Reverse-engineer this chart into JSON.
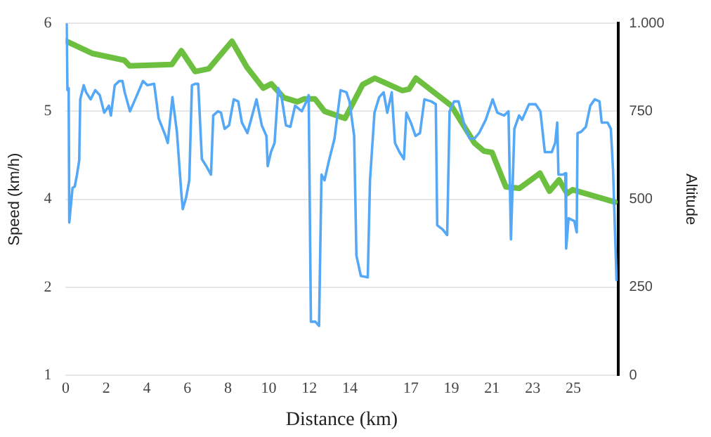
{
  "chart_data": {
    "type": "line",
    "xlabel": "Distance (km)",
    "ylabel": "Speed (km/h)",
    "y2label": "Altitude",
    "xlim": [
      0,
      27.2
    ],
    "xticks": [
      0,
      2,
      4,
      6,
      8,
      10,
      12,
      14,
      17,
      19,
      21,
      23,
      25
    ],
    "ylim": [
      1,
      6
    ],
    "yticks": [
      1,
      {
        "value": 2.25,
        "label": "2"
      },
      {
        "value": 3.5,
        "label": "4"
      },
      {
        "value": 4.75,
        "label": "5"
      },
      6
    ],
    "y2lim": [
      0,
      1000
    ],
    "y2ticks": [
      0,
      250,
      500,
      750,
      {
        "value": 1000,
        "label": "1.000"
      }
    ],
    "grid": "y",
    "marker": "none",
    "series": [
      {
        "color": "#55a8f5",
        "x": [
          0.05,
          0.09,
          0.15,
          0.18,
          0.34,
          0.45,
          0.56,
          0.67,
          0.72,
          0.89,
          1.01,
          1.23,
          1.46,
          1.68,
          1.9,
          2.13,
          2.23,
          2.42,
          2.64,
          2.8,
          2.91,
          3.17,
          3.47,
          3.81,
          4.03,
          4.36,
          4.58,
          4.92,
          5.03,
          5.26,
          5.48,
          5.7,
          5.77,
          5.93,
          6.09,
          6.22,
          6.38,
          6.53,
          6.71,
          6.93,
          7.16,
          7.27,
          7.5,
          7.65,
          7.83,
          8.05,
          8.28,
          8.5,
          8.68,
          8.95,
          9.13,
          9.4,
          9.66,
          9.89,
          9.95,
          10.11,
          10.29,
          10.47,
          10.62,
          10.85,
          11.07,
          11.3,
          11.63,
          11.86,
          11.97,
          12.08,
          12.3,
          12.48,
          12.6,
          12.75,
          12.97,
          13.24,
          13.54,
          13.83,
          13.98,
          14.21,
          14.32,
          14.54,
          14.88,
          14.99,
          15.21,
          15.44,
          15.66,
          15.84,
          16.06,
          16.22,
          16.44,
          16.66,
          16.78,
          17.0,
          17.23,
          17.45,
          17.67,
          18.01,
          18.23,
          18.3,
          18.57,
          18.79,
          18.91,
          19.13,
          19.35,
          19.68,
          19.91,
          20.13,
          20.36,
          20.69,
          21.03,
          21.26,
          21.59,
          21.81,
          21.93,
          22.1,
          22.33,
          22.48,
          22.82,
          23.15,
          23.38,
          23.6,
          23.94,
          24.11,
          24.21,
          24.27,
          24.5,
          24.61,
          24.65,
          24.77,
          25.05,
          25.17,
          25.21,
          25.39,
          25.62,
          25.84,
          26.06,
          26.29,
          26.4,
          26.69,
          26.85,
          26.96,
          27.13
        ],
        "values": [
          6.0,
          5.05,
          5.08,
          3.17,
          3.66,
          3.68,
          3.85,
          4.05,
          4.92,
          5.12,
          5.02,
          4.92,
          5.05,
          4.98,
          4.73,
          4.83,
          4.69,
          5.12,
          5.18,
          5.18,
          5.02,
          4.75,
          4.95,
          5.18,
          5.12,
          5.14,
          4.65,
          4.4,
          4.3,
          4.95,
          4.46,
          3.58,
          3.36,
          3.52,
          3.77,
          5.12,
          5.14,
          5.14,
          4.07,
          3.97,
          3.85,
          4.69,
          4.75,
          4.73,
          4.5,
          4.55,
          4.92,
          4.89,
          4.59,
          4.44,
          4.63,
          4.92,
          4.55,
          4.4,
          3.97,
          4.17,
          4.3,
          5.08,
          4.98,
          4.55,
          4.53,
          4.83,
          4.75,
          4.89,
          4.98,
          1.76,
          1.76,
          1.7,
          3.85,
          3.77,
          4.05,
          4.36,
          5.05,
          5.02,
          4.89,
          4.4,
          2.7,
          2.41,
          2.39,
          3.77,
          4.73,
          4.95,
          5.02,
          4.73,
          5.02,
          4.3,
          4.17,
          4.07,
          4.73,
          4.59,
          4.4,
          4.44,
          4.92,
          4.89,
          4.85,
          3.13,
          3.07,
          2.99,
          4.75,
          4.89,
          4.89,
          4.5,
          4.36,
          4.36,
          4.44,
          4.63,
          4.92,
          4.73,
          4.69,
          4.75,
          2.93,
          4.5,
          4.69,
          4.63,
          4.85,
          4.85,
          4.75,
          4.17,
          4.17,
          4.3,
          4.59,
          3.85,
          3.85,
          3.87,
          2.8,
          3.23,
          3.19,
          3.03,
          4.44,
          4.46,
          4.53,
          4.83,
          4.92,
          4.89,
          4.59,
          4.59,
          4.5,
          3.91,
          2.35
        ]
      },
      {
        "color": "#6cbf3f",
        "axis": "y2",
        "x": [
          0,
          1.34,
          2.89,
          3.15,
          5.23,
          5.7,
          6.38,
          7.05,
          8.19,
          8.93,
          9.73,
          10.13,
          10.74,
          11.41,
          11.74,
          12.28,
          12.75,
          13.76,
          14.63,
          15.23,
          16.58,
          16.91,
          17.25,
          18.99,
          20.13,
          20.6,
          21.0,
          21.68,
          22.35,
          23.36,
          23.83,
          24.3,
          24.7,
          24.97,
          27.05
        ],
        "values": [
          950,
          914,
          895,
          879,
          883,
          922,
          863,
          871,
          949,
          875,
          816,
          828,
          789,
          777,
          785,
          785,
          750,
          730,
          826,
          844,
          809,
          813,
          844,
          766,
          660,
          637,
          633,
          535,
          531,
          574,
          523,
          555,
          516,
          527,
          492
        ]
      }
    ]
  }
}
